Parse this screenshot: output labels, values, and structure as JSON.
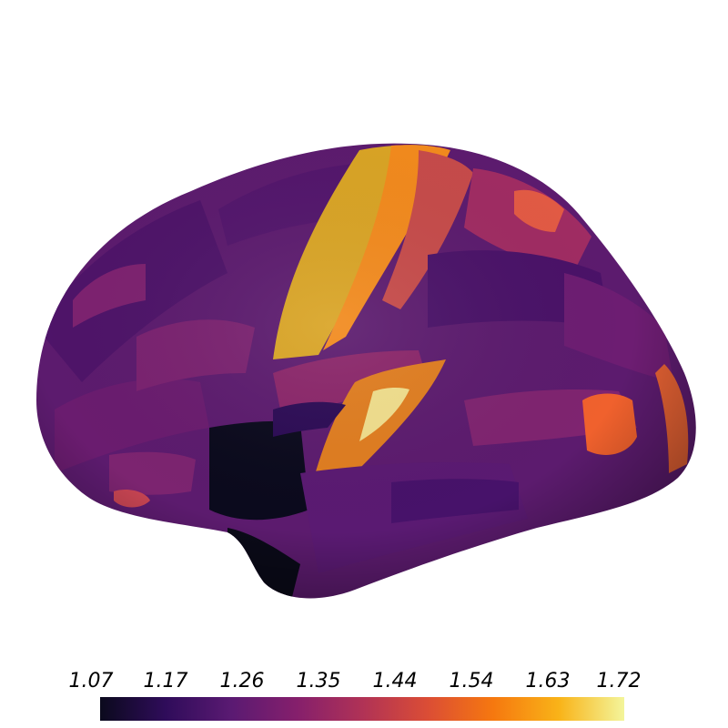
{
  "figure": {
    "colormap": "inferno",
    "colorbar": {
      "min": 1.07,
      "max": 1.72,
      "tick_labels": [
        "1.07",
        "1.17",
        "1.26",
        "1.35",
        "1.44",
        "1.54",
        "1.63",
        "1.72"
      ],
      "stops": [
        "#0b0a1d",
        "#2f0c5a",
        "#5a1a72",
        "#851f6c",
        "#b03256",
        "#db4d35",
        "#f6780f",
        "#f9b318",
        "#f3f59b"
      ]
    }
  }
}
